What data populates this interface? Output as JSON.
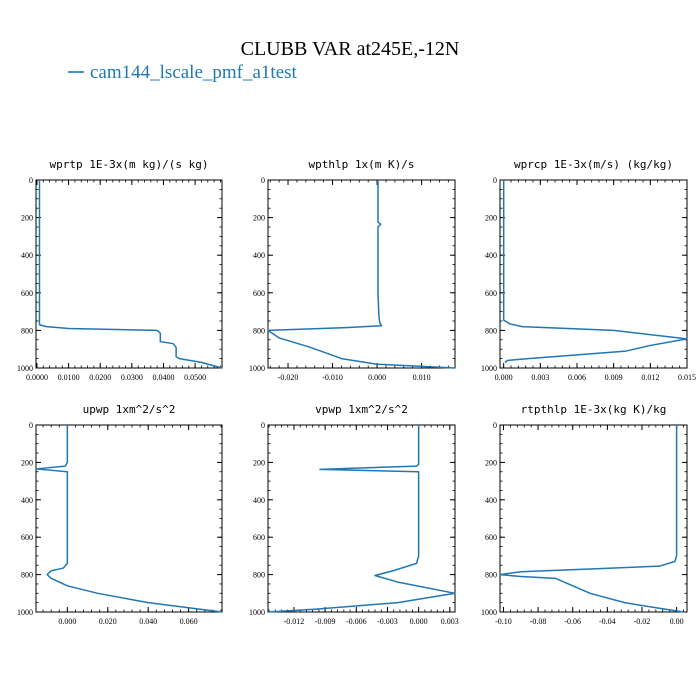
{
  "figure_title": "CLUBB VAR at245E,-12N",
  "legend": {
    "label": "cam144_lscale_pmf_a1test",
    "color": "#1f77b4"
  },
  "line_color": "#1f77b4",
  "chart_data": [
    {
      "type": "line",
      "title": "wprtp  1E-3x(m kg)/(s kg)",
      "xlim": [
        -0.0003,
        0.0585
      ],
      "ylim": [
        1000,
        0
      ],
      "xticks": [
        0,
        0.01,
        0.02,
        0.03,
        0.04,
        0.05
      ],
      "xticklabels": [
        "0.0000",
        "0.0100",
        "0.0200",
        "0.0300",
        "0.0400",
        "0.0500"
      ],
      "yticks": [
        0,
        200,
        400,
        600,
        800,
        1000
      ],
      "yticklabels": [
        "0",
        "200",
        "400",
        "600",
        "800",
        "1000"
      ],
      "series": [
        {
          "x": [
            0.0008,
            0.0008,
            0.0008,
            0.0008,
            0.0008,
            0.0008,
            0.0008,
            0.0008,
            0.0008,
            0.0008,
            0.0008,
            0.0008,
            0.003,
            0.01,
            0.038,
            0.039,
            0.039,
            0.043,
            0.044,
            0.044,
            0.045,
            0.052,
            0.0585
          ],
          "y": [
            0,
            100,
            200,
            300,
            400,
            500,
            600,
            700,
            740,
            750,
            760,
            770,
            780,
            790,
            800,
            815,
            860,
            870,
            890,
            940,
            950,
            970,
            1000
          ]
        }
      ]
    },
    {
      "type": "line",
      "title": "wpthlp  1x(m K)/s",
      "xlim": [
        -0.0245,
        0.0175
      ],
      "ylim": [
        1000,
        0
      ],
      "xticks": [
        -0.02,
        -0.01,
        0,
        0.01
      ],
      "xticklabels": [
        "-0.020",
        "-0.010",
        "0.000",
        "0.010"
      ],
      "yticks": [
        0,
        200,
        400,
        600,
        800,
        1000
      ],
      "yticklabels": [
        "0",
        "200",
        "400",
        "600",
        "800",
        "1000"
      ],
      "series": [
        {
          "x": [
            0.0002,
            0.0002,
            0.0002,
            0.0002,
            0.0008,
            0.0002,
            0.0002,
            0.0002,
            0.0004,
            0.0006,
            0.001,
            -0.007,
            -0.0245,
            -0.022,
            -0.015,
            -0.008,
            0.0,
            0.0175
          ],
          "y": [
            0,
            100,
            200,
            225,
            235,
            250,
            400,
            600,
            720,
            760,
            775,
            785,
            800,
            840,
            890,
            950,
            980,
            1000
          ]
        }
      ]
    },
    {
      "type": "line",
      "title": "wprcp  1E-3x(m/s) (kg/kg)",
      "xlim": [
        -0.0003,
        0.015
      ],
      "ylim": [
        1000,
        0
      ],
      "xticks": [
        0,
        0.003,
        0.006,
        0.009,
        0.012,
        0.015
      ],
      "xticklabels": [
        "0.000",
        "0.003",
        "0.006",
        "0.009",
        "0.012",
        "0.015"
      ],
      "yticks": [
        0,
        200,
        400,
        600,
        800,
        1000
      ],
      "yticklabels": [
        "0",
        "200",
        "400",
        "600",
        "800",
        "1000"
      ],
      "series": [
        {
          "x": [
            0,
            0,
            0,
            0,
            0,
            0,
            0,
            0.0005,
            0.0015,
            0.009,
            0.015,
            0.012,
            0.01,
            0.002,
            0.0003,
            0.0001
          ],
          "y": [
            0,
            200,
            400,
            600,
            700,
            720,
            745,
            765,
            780,
            800,
            845,
            880,
            910,
            950,
            960,
            970
          ]
        }
      ]
    },
    {
      "type": "line",
      "title": "upwp  1xm^2/s^2",
      "xlim": [
        -0.0155,
        0.0765
      ],
      "ylim": [
        1000,
        0
      ],
      "xticks": [
        0,
        0.02,
        0.04,
        0.06
      ],
      "xticklabels": [
        "0.000",
        "0.020",
        "0.040",
        "0.060"
      ],
      "yticks": [
        0,
        200,
        400,
        600,
        800,
        1000
      ],
      "yticklabels": [
        "0",
        "200",
        "400",
        "600",
        "800",
        "1000"
      ],
      "series": [
        {
          "x": [
            0.0,
            0.0,
            -0.001,
            -0.0155,
            0.0,
            0.0,
            0.0,
            0.0,
            0.0,
            -0.002,
            -0.008,
            -0.01,
            -0.008,
            0.0,
            0.015,
            0.04,
            0.0765
          ],
          "y": [
            0,
            200,
            220,
            235,
            250,
            300,
            500,
            700,
            740,
            765,
            780,
            800,
            820,
            860,
            900,
            950,
            1000
          ]
        }
      ]
    },
    {
      "type": "line",
      "title": "vpwp  1xm^2/s^2",
      "xlim": [
        -0.0145,
        0.0035
      ],
      "ylim": [
        1000,
        0
      ],
      "xticks": [
        -0.012,
        -0.009,
        -0.006,
        -0.003,
        0,
        0.003
      ],
      "xticklabels": [
        "-0.012",
        "-0.009",
        "-0.006",
        "-0.003",
        "0.000",
        "0.003"
      ],
      "yticks": [
        0,
        200,
        400,
        600,
        800,
        1000
      ],
      "yticklabels": [
        "0",
        "200",
        "400",
        "600",
        "800",
        "1000"
      ],
      "series": [
        {
          "x": [
            0,
            0,
            0,
            -0.0002,
            -0.0095,
            0.0,
            0.0,
            0.0,
            0.0,
            -0.0002,
            -0.0025,
            -0.0042,
            -0.002,
            0.0035,
            -0.002,
            -0.01,
            -0.0145
          ],
          "y": [
            0,
            150,
            210,
            220,
            237,
            250,
            300,
            500,
            700,
            740,
            780,
            805,
            840,
            900,
            950,
            985,
            1000
          ]
        }
      ]
    },
    {
      "type": "line",
      "title": "rtpthlp  1E-3x(kg K)/kg",
      "xlim": [
        -0.102,
        0.006
      ],
      "ylim": [
        1000,
        0
      ],
      "xticks": [
        -0.1,
        -0.08,
        -0.06,
        -0.04,
        -0.02,
        0
      ],
      "xticklabels": [
        "-0.10",
        "-0.08",
        "-0.06",
        "-0.04",
        "-0.02",
        "0.00"
      ],
      "yticks": [
        0,
        200,
        400,
        600,
        800,
        1000
      ],
      "yticklabels": [
        "0",
        "200",
        "400",
        "600",
        "800",
        "1000"
      ],
      "series": [
        {
          "x": [
            0.0,
            0.0,
            0.0,
            0.0,
            -0.001,
            -0.01,
            -0.05,
            -0.09,
            -0.102,
            -0.09,
            -0.07,
            -0.06,
            -0.05,
            -0.03,
            -0.01,
            0.004
          ],
          "y": [
            0,
            200,
            500,
            700,
            730,
            755,
            770,
            785,
            800,
            810,
            820,
            860,
            900,
            950,
            980,
            1000
          ]
        }
      ]
    }
  ]
}
